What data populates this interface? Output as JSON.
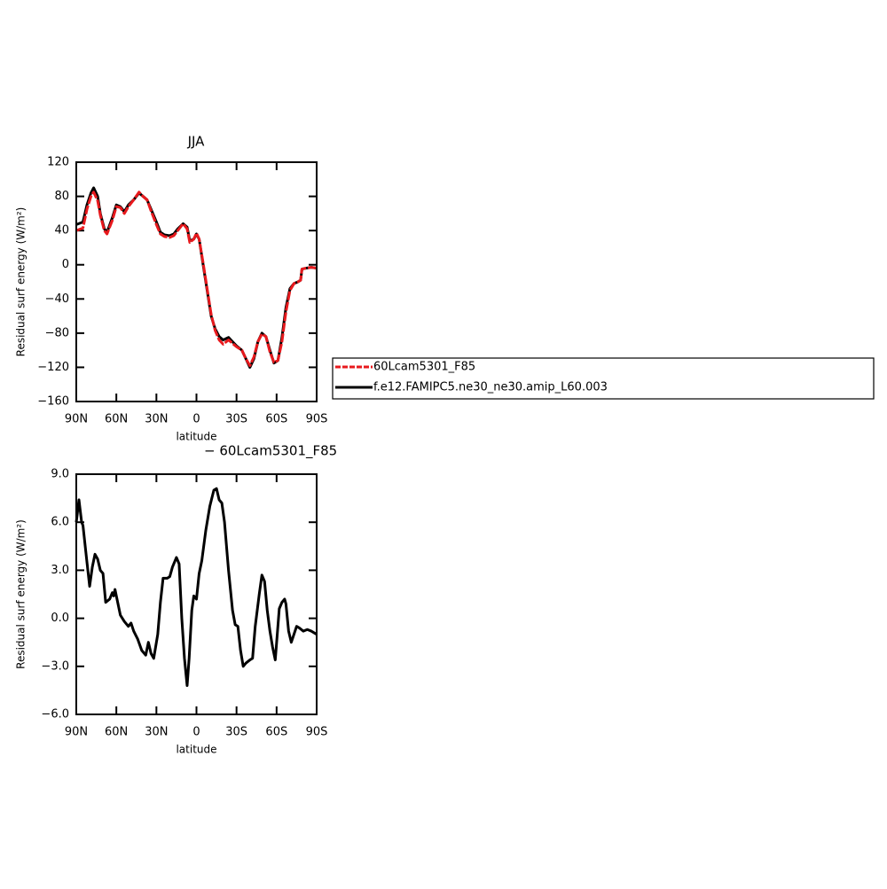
{
  "chart_data": [
    {
      "type": "line",
      "title": "JJA",
      "ylabel": "Residual surf energy (W/m²)",
      "xlabel": "latitude",
      "x": [
        90,
        85,
        82,
        79,
        77,
        74,
        72,
        69,
        67,
        63,
        60,
        57,
        54,
        51,
        47,
        43,
        40,
        37,
        34,
        30,
        27,
        24,
        20,
        17,
        14,
        10,
        7,
        5,
        2,
        0,
        -2,
        -5,
        -8,
        -11,
        -14,
        -17,
        -20,
        -24,
        -27,
        -30,
        -34,
        -37,
        -40,
        -43,
        -46,
        -49,
        -52,
        -55,
        -58,
        -61,
        -64,
        -67,
        -70,
        -73,
        -76,
        -78,
        -79,
        -82,
        -86,
        -90
      ],
      "series": [
        {
          "name": "60Lcam5301_F85",
          "color": "#e8191d",
          "dashed": true,
          "values": [
            40,
            43,
            65,
            80,
            85,
            75,
            58,
            40,
            36,
            52,
            68,
            67,
            60,
            68,
            76,
            85,
            80,
            76,
            63,
            47,
            36,
            33,
            32,
            34,
            40,
            48,
            42,
            26,
            30,
            37,
            30,
            2,
            -28,
            -58,
            -77,
            -88,
            -93,
            -88,
            -92,
            -96,
            -100,
            -110,
            -118,
            -108,
            -90,
            -81,
            -84,
            -102,
            -114,
            -112,
            -90,
            -55,
            -30,
            -22,
            -20,
            -18,
            -5,
            -4,
            -3,
            -4
          ]
        },
        {
          "name": "f.e12.FAMIPC5.ne30_ne30.amip_L60.003",
          "color": "#000000",
          "dashed": false,
          "values": [
            47,
            50,
            70,
            84,
            90,
            80,
            60,
            42,
            38,
            55,
            70,
            68,
            62,
            70,
            76,
            84,
            80,
            76,
            65,
            50,
            38,
            35,
            34,
            36,
            42,
            48,
            44,
            28,
            30,
            36,
            30,
            0,
            -30,
            -60,
            -75,
            -84,
            -88,
            -85,
            -90,
            -95,
            -100,
            -110,
            -120,
            -110,
            -90,
            -80,
            -84,
            -100,
            -115,
            -112,
            -85,
            -50,
            -28,
            -22,
            -20,
            -18,
            -5,
            -4,
            -3,
            -4
          ]
        }
      ],
      "xlim": [
        90,
        -90
      ],
      "xticks": [
        {
          "value": 90,
          "label": "90N"
        },
        {
          "value": 60,
          "label": "60N"
        },
        {
          "value": 30,
          "label": "30N"
        },
        0,
        {
          "value": -30,
          "label": "30S"
        },
        {
          "value": -60,
          "label": "60S"
        },
        {
          "value": -90,
          "label": "90S"
        }
      ],
      "ylim": [
        -160,
        120
      ],
      "yticks": [
        {
          "value": -160,
          "label": "−160"
        },
        {
          "value": -120,
          "label": "−120"
        },
        {
          "value": -80,
          "label": "−80"
        },
        {
          "value": -40,
          "label": "−40"
        },
        0,
        40,
        80,
        120
      ]
    },
    {
      "type": "line",
      "title": "− 60Lcam5301_F85",
      "ylabel": "Residual surf energy (W/m²)",
      "xlabel": "latitude",
      "x": [
        90,
        88,
        86,
        85,
        82,
        80,
        78,
        76,
        74,
        72,
        70,
        68,
        65,
        63,
        62,
        61,
        59,
        57,
        54,
        51,
        49,
        47,
        44,
        41,
        38,
        36,
        34,
        32,
        29,
        27,
        25,
        22,
        20,
        18,
        15,
        13,
        11,
        9,
        7,
        5.5,
        3.5,
        2,
        0,
        -2,
        -4,
        -7,
        -10,
        -13,
        -15,
        -17,
        -19,
        -21,
        -24,
        -27,
        -29,
        -31,
        -33,
        -35,
        -37,
        -40,
        -42,
        -44,
        -47,
        -49,
        -51,
        -53,
        -55,
        -57,
        -59,
        -60.5,
        -62,
        -64,
        -66,
        -67,
        -69,
        -71,
        -73,
        -75,
        -77,
        -80,
        -83,
        -86,
        -90
      ],
      "color": "#000000",
      "values": [
        6.0,
        7.4,
        6.0,
        5.8,
        3.5,
        2.0,
        3.2,
        4.0,
        3.7,
        3.0,
        2.8,
        1.0,
        1.2,
        1.6,
        1.4,
        1.8,
        1.0,
        0.2,
        -0.2,
        -0.5,
        -0.3,
        -0.8,
        -1.3,
        -2.0,
        -2.3,
        -1.5,
        -2.2,
        -2.5,
        -1.0,
        1.0,
        2.5,
        2.5,
        2.6,
        3.2,
        3.8,
        3.4,
        0.0,
        -2.5,
        -4.2,
        -2.5,
        0.5,
        1.4,
        1.2,
        2.8,
        3.6,
        5.5,
        7.0,
        8.0,
        8.1,
        7.4,
        7.2,
        6.0,
        3.0,
        0.5,
        -0.4,
        -0.5,
        -2.0,
        -3.0,
        -2.8,
        -2.6,
        -2.5,
        -0.5,
        1.5,
        2.7,
        2.3,
        0.5,
        -0.8,
        -1.8,
        -2.6,
        -1.0,
        0.6,
        1.0,
        1.2,
        0.9,
        -0.8,
        -1.5,
        -1.0,
        -0.5,
        -0.6,
        -0.8,
        -0.7,
        -0.8,
        -1.0
      ],
      "xlim": [
        90,
        -90
      ],
      "xticks": [
        {
          "value": 90,
          "label": "90N"
        },
        {
          "value": 60,
          "label": "60N"
        },
        {
          "value": 30,
          "label": "30N"
        },
        0,
        {
          "value": -30,
          "label": "30S"
        },
        {
          "value": -60,
          "label": "60S"
        },
        {
          "value": -90,
          "label": "90S"
        }
      ],
      "ylim": [
        -6,
        9
      ],
      "yticks": [
        {
          "value": -6,
          "label": "−6.0"
        },
        {
          "value": -3,
          "label": "−3.0"
        },
        {
          "value": 0,
          "label": "0.0"
        },
        {
          "value": 3,
          "label": "3.0"
        },
        {
          "value": 6,
          "label": "6.0"
        },
        {
          "value": 9,
          "label": "9.0"
        }
      ]
    }
  ]
}
